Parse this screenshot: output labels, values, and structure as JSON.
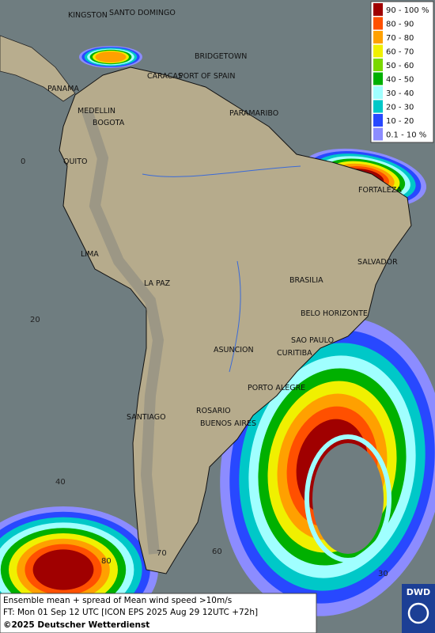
{
  "legend": [
    {
      "label": "90 - 100 %",
      "color": "#a00000"
    },
    {
      "label": "80 - 90",
      "color": "#ff5000"
    },
    {
      "label": "70 - 80",
      "color": "#ffa000"
    },
    {
      "label": "60 - 70",
      "color": "#f0f000"
    },
    {
      "label": "50 - 60",
      "color": "#7ad800"
    },
    {
      "label": "40 - 50",
      "color": "#00b000"
    },
    {
      "label": "30 - 40",
      "color": "#a0ffff"
    },
    {
      "label": "20 - 30",
      "color": "#00c8c8"
    },
    {
      "label": "10 - 20",
      "color": "#2848ff"
    },
    {
      "label": "0.1 - 10 %",
      "color": "#8c8cff"
    }
  ],
  "cities": [
    "KINGSTON",
    "SANTO DOMINGO",
    "BRIDGETOWN",
    "CARACAS",
    "PORT OF SPAIN",
    "PANAMA",
    "MEDELLIN",
    "PARAMARIBO",
    "BOGOTA",
    "QUITO",
    "FORTALEZA",
    "LIMA",
    "SALVADOR",
    "LA PAZ",
    "BRASILIA",
    "BELO HORIZONTE",
    "SAO PAULO",
    "ASUNCION",
    "CURITIBA",
    "PORTO ALEGRE",
    "SANTIAGO",
    "ROSARIO",
    "BUENOS AIRES"
  ],
  "grid_labels": [
    "0",
    "20",
    "40",
    "80",
    "70",
    "60",
    "30"
  ],
  "footer": [
    "Ensemble mean + spread of Mean wind speed >10m/s",
    "FT: Mon 01 Sep 12 UTC [ICON EPS 2025 Aug 29 12UTC +72h]",
    "©2025 Deutscher Wetterdienst"
  ],
  "logo": "DWD"
}
